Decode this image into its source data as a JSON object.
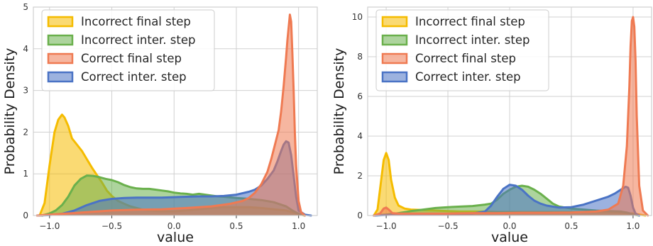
{
  "chart_data": [
    {
      "type": "area",
      "xlabel": "value",
      "ylabel": "Probability Density",
      "xlim": [
        -1.13,
        1.15
      ],
      "ylim": [
        0,
        5
      ],
      "xticks": [
        -1.0,
        -0.5,
        0.0,
        0.5,
        1.0
      ],
      "xtick_labels": [
        "−1.0",
        "−0.5",
        "0.0",
        "0.5",
        "1.0"
      ],
      "yticks": [
        0,
        1,
        2,
        3,
        4,
        5
      ],
      "ytick_labels": [
        "0",
        "1",
        "2",
        "3",
        "4",
        "5"
      ],
      "grid": true,
      "legend": "upper-left",
      "series": [
        {
          "name": "Incorrect final step",
          "color": "#f5bc00",
          "x": [
            -1.08,
            -1.04,
            -1.0,
            -0.96,
            -0.93,
            -0.9,
            -0.88,
            -0.85,
            -0.82,
            -0.78,
            -0.74,
            -0.7,
            -0.66,
            -0.62,
            -0.58,
            -0.54,
            -0.5,
            -0.45,
            -0.4,
            -0.35,
            -0.3,
            -0.25,
            -0.2,
            -0.1,
            0.0,
            0.1,
            0.2,
            0.3,
            0.4,
            0.5,
            0.6,
            0.7,
            0.8,
            0.9,
            0.95,
            1.0,
            1.05
          ],
          "values": [
            0.0,
            0.3,
            1.2,
            2.0,
            2.3,
            2.42,
            2.35,
            2.15,
            1.85,
            1.7,
            1.55,
            1.35,
            1.15,
            0.97,
            0.8,
            0.6,
            0.47,
            0.35,
            0.28,
            0.22,
            0.18,
            0.14,
            0.12,
            0.1,
            0.1,
            0.12,
            0.15,
            0.18,
            0.2,
            0.2,
            0.2,
            0.18,
            0.15,
            0.12,
            0.08,
            0.03,
            0.0
          ]
        },
        {
          "name": "Incorrect inter. step",
          "color": "#6ab04c",
          "x": [
            -1.06,
            -1.0,
            -0.95,
            -0.9,
            -0.85,
            -0.8,
            -0.75,
            -0.7,
            -0.65,
            -0.6,
            -0.55,
            -0.5,
            -0.45,
            -0.4,
            -0.35,
            -0.3,
            -0.25,
            -0.2,
            -0.15,
            -0.1,
            -0.05,
            0.0,
            0.05,
            0.1,
            0.15,
            0.2,
            0.25,
            0.3,
            0.35,
            0.4,
            0.5,
            0.6,
            0.7,
            0.8,
            0.9,
            0.95,
            1.0,
            1.05
          ],
          "values": [
            0.0,
            0.05,
            0.12,
            0.25,
            0.45,
            0.72,
            0.88,
            0.96,
            0.95,
            0.92,
            0.88,
            0.85,
            0.8,
            0.73,
            0.68,
            0.65,
            0.64,
            0.64,
            0.62,
            0.6,
            0.58,
            0.55,
            0.53,
            0.52,
            0.5,
            0.52,
            0.5,
            0.48,
            0.46,
            0.45,
            0.42,
            0.4,
            0.37,
            0.32,
            0.22,
            0.12,
            0.04,
            0.0
          ]
        },
        {
          "name": "Correct final step",
          "color": "#ef7a52",
          "x": [
            -1.1,
            -1.0,
            -0.9,
            -0.8,
            -0.7,
            -0.6,
            -0.5,
            -0.3,
            -0.1,
            0.1,
            0.3,
            0.45,
            0.55,
            0.6,
            0.65,
            0.7,
            0.75,
            0.78,
            0.81,
            0.84,
            0.86,
            0.88,
            0.9,
            0.91,
            0.92,
            0.93,
            0.94,
            0.95,
            0.96,
            0.97,
            0.98,
            1.0,
            1.02,
            1.05
          ],
          "values": [
            0.0,
            0.02,
            0.04,
            0.06,
            0.08,
            0.1,
            0.12,
            0.14,
            0.15,
            0.18,
            0.22,
            0.28,
            0.35,
            0.42,
            0.55,
            0.75,
            1.05,
            1.35,
            1.7,
            2.05,
            2.5,
            3.1,
            3.8,
            4.2,
            4.5,
            4.82,
            4.65,
            3.9,
            3.0,
            2.0,
            1.2,
            0.35,
            0.08,
            0.0
          ]
        },
        {
          "name": "Correct inter. step",
          "color": "#4a73c5",
          "x": [
            -1.1,
            -1.0,
            -0.9,
            -0.8,
            -0.7,
            -0.6,
            -0.5,
            -0.4,
            -0.3,
            -0.2,
            -0.1,
            0.0,
            0.1,
            0.2,
            0.3,
            0.4,
            0.5,
            0.6,
            0.65,
            0.7,
            0.75,
            0.8,
            0.83,
            0.86,
            0.88,
            0.9,
            0.92,
            0.94,
            0.96,
            0.98,
            1.0,
            1.05,
            1.1
          ],
          "values": [
            0.0,
            0.01,
            0.04,
            0.12,
            0.25,
            0.35,
            0.4,
            0.42,
            0.43,
            0.43,
            0.43,
            0.44,
            0.45,
            0.46,
            0.46,
            0.47,
            0.5,
            0.57,
            0.62,
            0.72,
            0.88,
            1.08,
            1.3,
            1.55,
            1.7,
            1.78,
            1.75,
            1.45,
            0.95,
            0.45,
            0.12,
            0.02,
            0.0
          ]
        }
      ]
    },
    {
      "type": "area",
      "xlabel": "value",
      "ylabel": "Probability Density",
      "xlim": [
        -1.15,
        1.15
      ],
      "ylim": [
        0,
        10.5
      ],
      "xticks": [
        -1.0,
        -0.5,
        0.0,
        0.5,
        1.0
      ],
      "xtick_labels": [
        "−1.0",
        "−0.5",
        "0.0",
        "0.5",
        "1.0"
      ],
      "yticks": [
        0,
        2,
        4,
        6,
        8,
        10
      ],
      "ytick_labels": [
        "0",
        "2",
        "4",
        "6",
        "8",
        "10"
      ],
      "grid": true,
      "legend": "upper-left",
      "series": [
        {
          "name": "Incorrect final step",
          "color": "#f5bc00",
          "x": [
            -1.1,
            -1.07,
            -1.04,
            -1.02,
            -1.0,
            -0.98,
            -0.96,
            -0.93,
            -0.9,
            -0.85,
            -0.8,
            -0.7,
            -0.6,
            -0.5,
            -0.4,
            -0.3,
            -0.2,
            -0.1,
            0.0,
            0.1,
            0.2,
            0.3,
            0.4,
            0.5,
            0.6,
            0.7,
            0.8,
            0.9,
            0.95,
            1.0,
            1.05,
            1.1
          ],
          "values": [
            0.0,
            0.3,
            1.8,
            2.8,
            3.15,
            2.8,
            1.8,
            0.9,
            0.5,
            0.35,
            0.3,
            0.28,
            0.25,
            0.22,
            0.2,
            0.2,
            0.2,
            0.18,
            0.18,
            0.18,
            0.18,
            0.18,
            0.18,
            0.18,
            0.18,
            0.18,
            0.18,
            0.15,
            0.12,
            0.1,
            0.05,
            0.0
          ]
        },
        {
          "name": "Incorrect inter. step",
          "color": "#6ab04c",
          "x": [
            -1.1,
            -1.0,
            -0.9,
            -0.8,
            -0.7,
            -0.6,
            -0.5,
            -0.4,
            -0.3,
            -0.2,
            -0.15,
            -0.1,
            -0.05,
            0.0,
            0.05,
            0.1,
            0.15,
            0.2,
            0.25,
            0.3,
            0.35,
            0.4,
            0.5,
            0.6,
            0.7,
            0.8,
            0.9,
            0.95,
            1.0,
            1.05
          ],
          "values": [
            0.0,
            0.05,
            0.12,
            0.22,
            0.3,
            0.38,
            0.42,
            0.45,
            0.48,
            0.55,
            0.6,
            0.8,
            1.1,
            1.3,
            1.45,
            1.5,
            1.45,
            1.3,
            1.1,
            0.85,
            0.6,
            0.45,
            0.35,
            0.3,
            0.25,
            0.22,
            0.2,
            0.15,
            0.05,
            0.0
          ]
        },
        {
          "name": "Correct final step",
          "color": "#ef7a52",
          "x": [
            -1.1,
            -1.05,
            -1.02,
            -1.0,
            -0.98,
            -0.95,
            -0.9,
            -0.7,
            -0.5,
            -0.3,
            -0.1,
            0.1,
            0.3,
            0.5,
            0.7,
            0.8,
            0.88,
            0.92,
            0.95,
            0.97,
            0.98,
            0.99,
            1.0,
            1.01,
            1.02,
            1.03,
            1.05,
            1.08,
            1.12
          ],
          "values": [
            0.0,
            0.1,
            0.35,
            0.4,
            0.3,
            0.12,
            0.1,
            0.1,
            0.1,
            0.12,
            0.12,
            0.14,
            0.14,
            0.15,
            0.2,
            0.3,
            0.6,
            1.5,
            3.5,
            6.5,
            8.5,
            9.8,
            10.0,
            9.5,
            7.8,
            5.0,
            1.5,
            0.25,
            0.0
          ]
        },
        {
          "name": "Correct inter. step",
          "color": "#4a73c5",
          "x": [
            -1.1,
            -1.0,
            -0.9,
            -0.8,
            -0.6,
            -0.4,
            -0.3,
            -0.2,
            -0.15,
            -0.1,
            -0.05,
            0.0,
            0.05,
            0.1,
            0.15,
            0.2,
            0.25,
            0.3,
            0.4,
            0.5,
            0.6,
            0.7,
            0.8,
            0.85,
            0.9,
            0.94,
            0.96,
            0.98,
            1.0,
            1.02,
            1.05
          ],
          "values": [
            0.0,
            0.03,
            0.05,
            0.06,
            0.07,
            0.08,
            0.1,
            0.2,
            0.5,
            0.95,
            1.35,
            1.55,
            1.5,
            1.3,
            1.0,
            0.75,
            0.6,
            0.5,
            0.4,
            0.42,
            0.55,
            0.75,
            0.95,
            1.1,
            1.3,
            1.45,
            1.4,
            1.0,
            0.4,
            0.1,
            0.0
          ]
        }
      ]
    }
  ]
}
